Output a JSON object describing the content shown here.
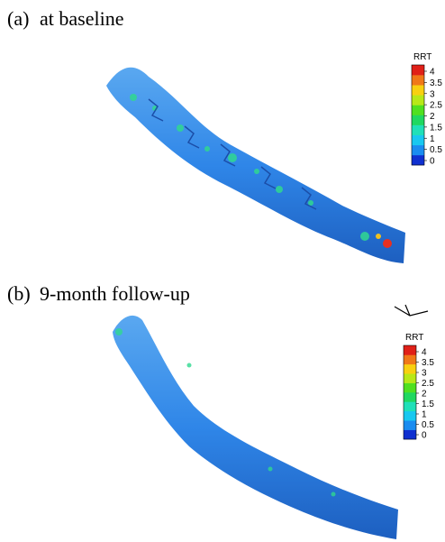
{
  "panels": [
    {
      "label": "(a)",
      "title": "at baseline",
      "colorbar": {
        "title": "RRT",
        "clim": [
          0,
          4
        ],
        "ticks": [
          4,
          3.5,
          3,
          2.5,
          2,
          1.5,
          1,
          0.5,
          0
        ],
        "colors": [
          "#1030d0",
          "#1a8cf0",
          "#18c8f0",
          "#20e0b8",
          "#20d860",
          "#50e020",
          "#b8e818",
          "#f8d010",
          "#f07818",
          "#e02018"
        ]
      }
    },
    {
      "label": "(b)",
      "title": "9-month follow-up",
      "colorbar": {
        "title": "RRT",
        "clim": [
          0,
          4
        ],
        "ticks": [
          4,
          3.5,
          3,
          2.5,
          2,
          1.5,
          1,
          0.5,
          0
        ],
        "colors": [
          "#1030d0",
          "#1a8cf0",
          "#18c8f0",
          "#20e0b8",
          "#20d860",
          "#50e020",
          "#b8e818",
          "#f8d010",
          "#f07818",
          "#e02018"
        ]
      }
    }
  ]
}
